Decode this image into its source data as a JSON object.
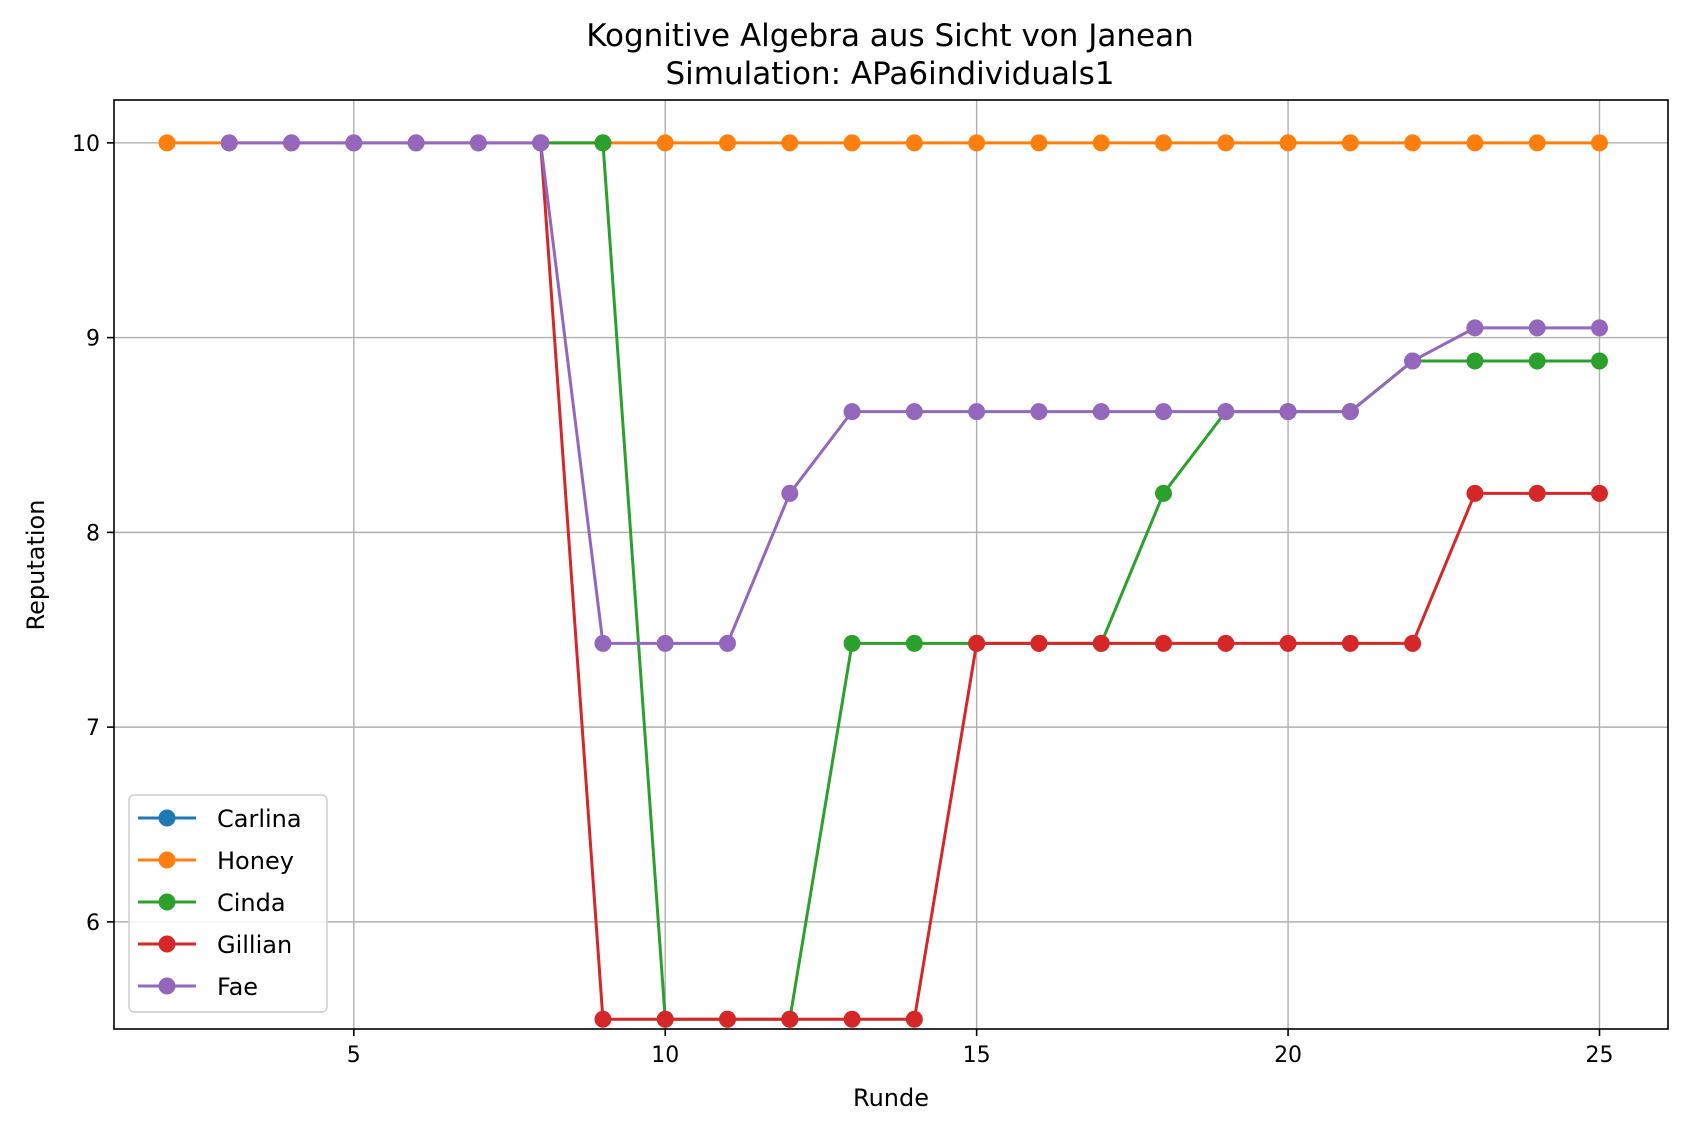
{
  "chart_data": {
    "type": "line",
    "title": "Kognitive Algebra aus Sicht von Janean",
    "subtitle": "Simulation: APa6individuals1",
    "xlabel": "Runde",
    "ylabel": "Reputation",
    "xlim": [
      1.15,
      26.1
    ],
    "ylim": [
      5.45,
      10.22
    ],
    "xticks": [
      5,
      10,
      15,
      20,
      25
    ],
    "yticks": [
      6,
      7,
      8,
      9,
      10
    ],
    "grid": true,
    "legend_position": "lower-left",
    "series": [
      {
        "name": "Carlina",
        "color": "#1f77b4",
        "points": []
      },
      {
        "name": "Honey",
        "color": "#ff7f0e",
        "points": [
          [
            2,
            10
          ],
          [
            3,
            10
          ],
          [
            4,
            10
          ],
          [
            5,
            10
          ],
          [
            6,
            10
          ],
          [
            7,
            10
          ],
          [
            8,
            10
          ],
          [
            9,
            10
          ],
          [
            10,
            10
          ],
          [
            11,
            10
          ],
          [
            12,
            10
          ],
          [
            13,
            10
          ],
          [
            14,
            10
          ],
          [
            15,
            10
          ],
          [
            16,
            10
          ],
          [
            17,
            10
          ],
          [
            18,
            10
          ],
          [
            19,
            10
          ],
          [
            20,
            10
          ],
          [
            21,
            10
          ],
          [
            22,
            10
          ],
          [
            23,
            10
          ],
          [
            24,
            10
          ],
          [
            25,
            10
          ]
        ]
      },
      {
        "name": "Cinda",
        "color": "#2ca02c",
        "points": [
          [
            8,
            10
          ],
          [
            9,
            10
          ],
          [
            10,
            5.5
          ],
          [
            11,
            5.5
          ],
          [
            12,
            5.5
          ],
          [
            13,
            7.43
          ],
          [
            14,
            7.43
          ],
          [
            15,
            7.43
          ],
          [
            16,
            7.43
          ],
          [
            17,
            7.43
          ],
          [
            18,
            8.2
          ],
          [
            19,
            8.62
          ],
          [
            20,
            8.62
          ],
          [
            21,
            8.62
          ],
          [
            22,
            8.88
          ],
          [
            23,
            8.88
          ],
          [
            24,
            8.88
          ],
          [
            25,
            8.88
          ]
        ]
      },
      {
        "name": "Gillian",
        "color": "#d62728",
        "points": [
          [
            8,
            10
          ],
          [
            9,
            5.5
          ],
          [
            10,
            5.5
          ],
          [
            11,
            5.5
          ],
          [
            12,
            5.5
          ],
          [
            13,
            5.5
          ],
          [
            14,
            5.5
          ],
          [
            15,
            7.43
          ],
          [
            16,
            7.43
          ],
          [
            17,
            7.43
          ],
          [
            18,
            7.43
          ],
          [
            19,
            7.43
          ],
          [
            20,
            7.43
          ],
          [
            21,
            7.43
          ],
          [
            22,
            7.43
          ],
          [
            23,
            8.2
          ],
          [
            24,
            8.2
          ],
          [
            25,
            8.2
          ]
        ]
      },
      {
        "name": "Fae",
        "color": "#9467bd",
        "points": [
          [
            3,
            10
          ],
          [
            4,
            10
          ],
          [
            5,
            10
          ],
          [
            6,
            10
          ],
          [
            7,
            10
          ],
          [
            8,
            10
          ],
          [
            9,
            7.43
          ],
          [
            10,
            7.43
          ],
          [
            11,
            7.43
          ],
          [
            12,
            8.2
          ],
          [
            13,
            8.62
          ],
          [
            14,
            8.62
          ],
          [
            15,
            8.62
          ],
          [
            16,
            8.62
          ],
          [
            17,
            8.62
          ],
          [
            18,
            8.62
          ],
          [
            19,
            8.62
          ],
          [
            20,
            8.62
          ],
          [
            21,
            8.62
          ],
          [
            22,
            8.88
          ],
          [
            23,
            9.05
          ],
          [
            24,
            9.05
          ],
          [
            25,
            9.05
          ]
        ]
      }
    ]
  }
}
